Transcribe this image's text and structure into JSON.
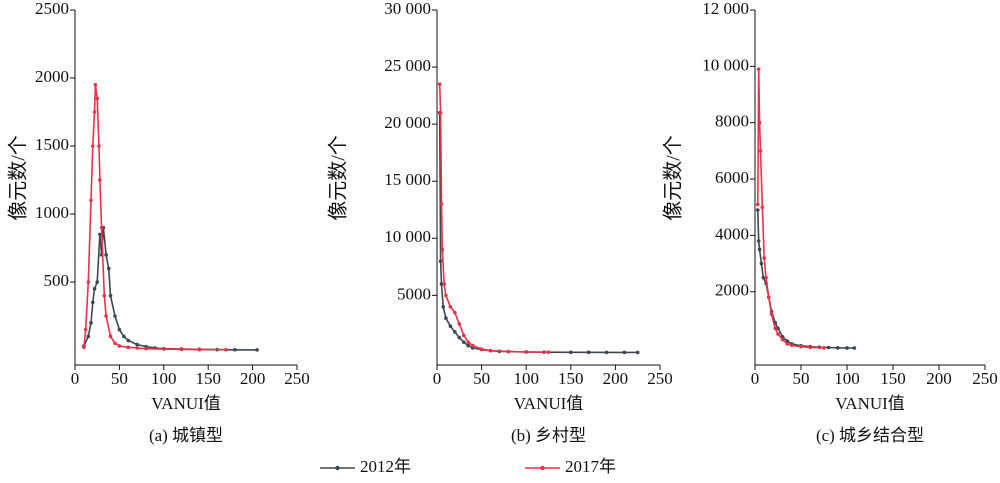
{
  "chart_data": [
    {
      "type": "line",
      "title": "(a) 城镇型",
      "xlabel": "VANUI值",
      "ylabel": "像元数/个",
      "xlim": [
        0,
        250
      ],
      "xticks": [
        0,
        50,
        100,
        150,
        200,
        250
      ],
      "ylim": [
        -110,
        2500
      ],
      "yticks": [
        500,
        1000,
        1500,
        2000,
        2500
      ],
      "legend": "bottom",
      "series": [
        {
          "name": "2012年",
          "color": "#3d4750",
          "x": [
            10,
            15,
            18,
            20,
            22,
            25,
            28,
            30,
            32,
            35,
            38,
            40,
            45,
            50,
            55,
            60,
            70,
            80,
            90,
            100,
            120,
            140,
            160,
            180,
            205
          ],
          "values": [
            30,
            100,
            200,
            350,
            450,
            500,
            850,
            700,
            900,
            700,
            600,
            400,
            250,
            150,
            100,
            70,
            40,
            25,
            15,
            10,
            8,
            5,
            3,
            2,
            1
          ]
        },
        {
          "name": "2017年",
          "color": "#e8324a",
          "x": [
            10,
            12,
            15,
            18,
            20,
            22,
            23,
            25,
            27,
            28,
            30,
            33,
            35,
            40,
            45,
            50,
            60,
            70,
            80,
            100,
            120,
            140,
            170
          ],
          "values": [
            20,
            150,
            500,
            1100,
            1500,
            1750,
            1950,
            1850,
            1500,
            1250,
            900,
            400,
            250,
            100,
            50,
            30,
            20,
            15,
            10,
            7,
            5,
            3,
            2
          ]
        }
      ]
    },
    {
      "type": "line",
      "title": "(b) 乡村型",
      "xlabel": "VANUI值",
      "ylabel": "像元数/个",
      "xlim": [
        0,
        250
      ],
      "xticks": [
        0,
        50,
        100,
        150,
        200,
        250
      ],
      "ylim": [
        -1100,
        30000
      ],
      "yticks": [
        5000,
        {
          "value": 10000,
          "label": "10 000"
        },
        {
          "value": 15000,
          "label": "15 000"
        },
        {
          "value": 20000,
          "label": "20 000"
        },
        {
          "value": 25000,
          "label": "25 000"
        },
        {
          "value": 30000,
          "label": "30 000"
        }
      ],
      "series": [
        {
          "name": "2012年",
          "color": "#3d4750",
          "x": [
            3,
            4,
            5,
            7,
            10,
            15,
            20,
            25,
            30,
            35,
            40,
            50,
            60,
            70,
            80,
            100,
            120,
            150,
            170,
            190,
            210,
            225
          ],
          "values": [
            21000,
            8000,
            6000,
            4000,
            3000,
            2300,
            1800,
            1300,
            900,
            600,
            400,
            250,
            150,
            100,
            70,
            40,
            25,
            15,
            10,
            5,
            3,
            2
          ]
        },
        {
          "name": "2017年",
          "color": "#e8324a",
          "x": [
            3,
            4,
            5,
            6,
            8,
            10,
            15,
            20,
            25,
            30,
            35,
            40,
            50,
            60,
            80,
            100,
            125
          ],
          "values": [
            23500,
            21000,
            13000,
            9000,
            6000,
            5000,
            4000,
            3500,
            2500,
            1500,
            900,
            600,
            300,
            150,
            80,
            40,
            20
          ]
        }
      ]
    },
    {
      "type": "line",
      "title": "(c) 城乡结合型",
      "xlabel": "VANUI值",
      "ylabel": "像元数/个",
      "xlim": [
        0,
        250
      ],
      "xticks": [
        0,
        50,
        100,
        150,
        200,
        250
      ],
      "ylim": [
        -600,
        12000
      ],
      "yticks": [
        2000,
        4000,
        6000,
        8000,
        {
          "value": 10000,
          "label": "10 000"
        },
        {
          "value": 12000,
          "label": "12 000"
        }
      ],
      "series": [
        {
          "name": "2012年",
          "color": "#3d4750",
          "x": [
            3,
            4,
            5,
            7,
            9,
            12,
            15,
            18,
            22,
            25,
            30,
            35,
            40,
            50,
            60,
            70,
            80,
            90,
            100,
            108
          ],
          "values": [
            4900,
            3800,
            3500,
            3000,
            2500,
            2300,
            1800,
            1300,
            900,
            700,
            400,
            250,
            150,
            80,
            50,
            30,
            20,
            10,
            5,
            3
          ]
        },
        {
          "name": "2017年",
          "color": "#e8324a",
          "x": [
            3,
            4,
            5,
            6,
            8,
            10,
            12,
            15,
            18,
            22,
            25,
            30,
            35,
            40,
            50,
            60,
            75
          ],
          "values": [
            5100,
            9900,
            8000,
            7000,
            5000,
            3200,
            2500,
            1800,
            1200,
            700,
            500,
            300,
            150,
            100,
            50,
            25,
            10
          ]
        }
      ]
    }
  ]
}
